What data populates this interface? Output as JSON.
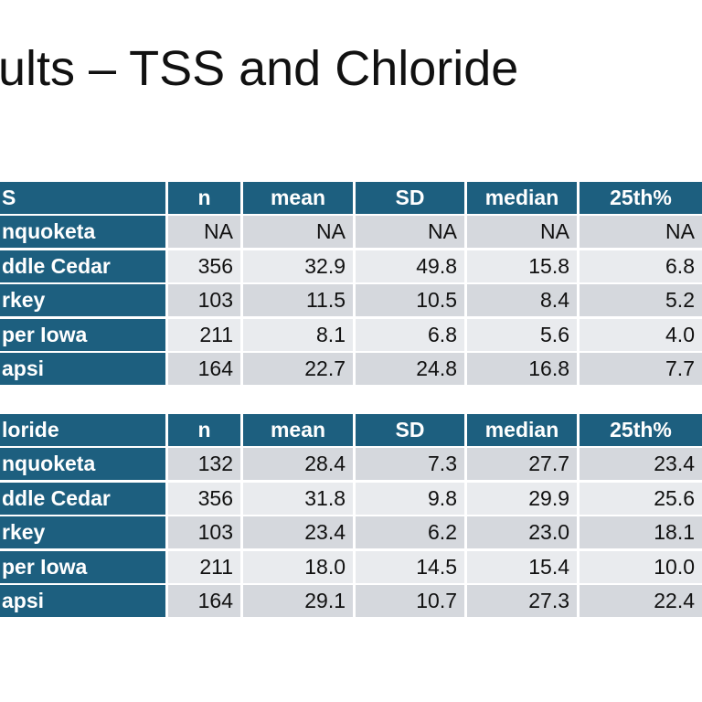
{
  "title": "ults – TSS and Chloride",
  "tables": [
    {
      "header": [
        "S",
        "n",
        "mean",
        "SD",
        "median",
        "25th%"
      ],
      "rows": [
        [
          "nquoketa",
          "NA",
          "NA",
          "NA",
          "NA",
          "NA"
        ],
        [
          "ddle Cedar",
          "356",
          "32.9",
          "49.8",
          "15.8",
          "6.8"
        ],
        [
          "rkey",
          "103",
          "11.5",
          "10.5",
          "8.4",
          "5.2"
        ],
        [
          "per Iowa",
          "211",
          "8.1",
          "6.8",
          "5.6",
          "4.0"
        ],
        [
          "apsi",
          "164",
          "22.7",
          "24.8",
          "16.8",
          "7.7"
        ]
      ]
    },
    {
      "header": [
        "loride",
        "n",
        "mean",
        "SD",
        "median",
        "25th%"
      ],
      "rows": [
        [
          "nquoketa",
          "132",
          "28.4",
          "7.3",
          "27.7",
          "23.4"
        ],
        [
          "ddle Cedar",
          "356",
          "31.8",
          "9.8",
          "29.9",
          "25.6"
        ],
        [
          "rkey",
          "103",
          "23.4",
          "6.2",
          "23.0",
          "18.1"
        ],
        [
          "per Iowa",
          "211",
          "18.0",
          "14.5",
          "15.4",
          "10.0"
        ],
        [
          "apsi",
          "164",
          "29.1",
          "10.7",
          "27.3",
          "22.4"
        ]
      ]
    }
  ]
}
